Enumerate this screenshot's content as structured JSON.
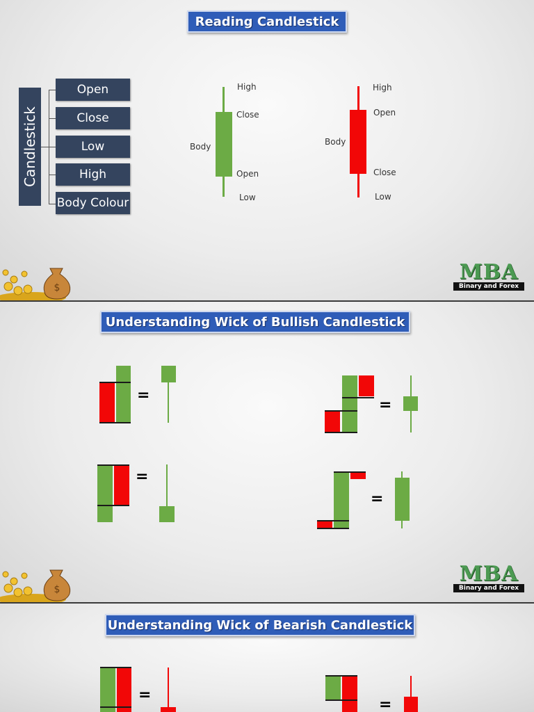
{
  "slide1": {
    "title": "Reading Candlestick",
    "root": "Candlestick",
    "items": [
      "Open",
      "Close",
      "Low",
      "High",
      "Body Colour"
    ],
    "bullish": {
      "high": "High",
      "close": "Close",
      "body": "Body",
      "open": "Open",
      "low": "Low"
    },
    "bearish": {
      "high": "High",
      "open": "Open",
      "body": "Body",
      "close": "Close",
      "low": "Low"
    }
  },
  "slide2": {
    "title": "Understanding Wick of Bullish Candlestick",
    "equals": "="
  },
  "slide3": {
    "title": "Understanding Wick of Bearish Candlestick",
    "equals": "="
  },
  "logo": {
    "main": "MBA",
    "sub": "Binary and Forex"
  },
  "colors": {
    "bullish": "#6cab45",
    "bearish": "#f20707",
    "banner": "#2f5db8",
    "box": "#34445e"
  }
}
